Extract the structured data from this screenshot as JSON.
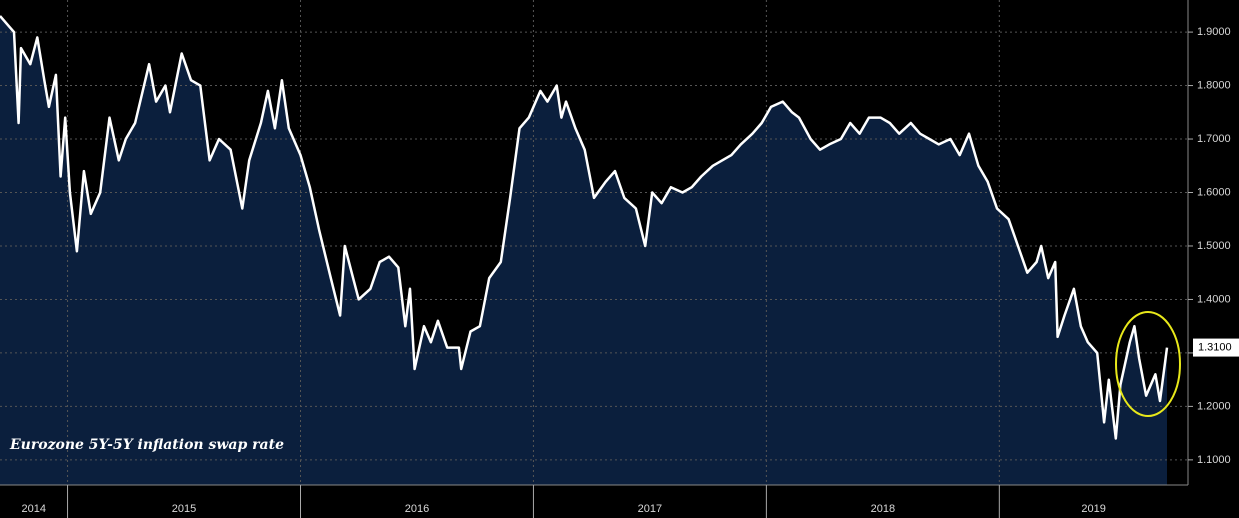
{
  "chart_data": {
    "type": "area",
    "annotation": "Eurozone 5Y-5Y inflation swap rate",
    "x": [
      2014.71,
      2014.75,
      2014.77,
      2014.79,
      2014.8,
      2014.84,
      2014.87,
      2014.9,
      2014.92,
      2014.95,
      2014.97,
      2014.99,
      2015.01,
      2015.04,
      2015.07,
      2015.1,
      2015.14,
      2015.18,
      2015.22,
      2015.25,
      2015.29,
      2015.35,
      2015.38,
      2015.42,
      2015.44,
      2015.49,
      2015.53,
      2015.57,
      2015.61,
      2015.65,
      2015.7,
      2015.75,
      2015.78,
      2015.83,
      2015.86,
      2015.89,
      2015.92,
      2015.95,
      2016.0,
      2016.04,
      2016.08,
      2016.13,
      2016.17,
      2016.19,
      2016.22,
      2016.25,
      2016.3,
      2016.34,
      2016.38,
      2016.42,
      2016.45,
      2016.47,
      2016.49,
      2016.53,
      2016.56,
      2016.59,
      2016.63,
      2016.68,
      2016.69,
      2016.73,
      2016.77,
      2016.81,
      2016.86,
      2016.9,
      2016.94,
      2016.98,
      2017.03,
      2017.06,
      2017.1,
      2017.12,
      2017.14,
      2017.18,
      2017.22,
      2017.26,
      2017.31,
      2017.35,
      2017.39,
      2017.44,
      2017.48,
      2017.51,
      2017.55,
      2017.59,
      2017.64,
      2017.68,
      2017.72,
      2017.77,
      2017.81,
      2017.85,
      2017.89,
      2017.94,
      2017.98,
      2018.02,
      2018.07,
      2018.11,
      2018.14,
      2018.19,
      2018.23,
      2018.27,
      2018.32,
      2018.36,
      2018.4,
      2018.44,
      2018.49,
      2018.53,
      2018.57,
      2018.62,
      2018.66,
      2018.7,
      2018.74,
      2018.79,
      2018.83,
      2018.87,
      2018.91,
      2018.95,
      2018.99,
      2019.04,
      2019.08,
      2019.12,
      2019.16,
      2019.18,
      2019.21,
      2019.24,
      2019.25,
      2019.28,
      2019.32,
      2019.35,
      2019.38,
      2019.42,
      2019.45,
      2019.47,
      2019.5,
      2019.52,
      2019.56,
      2019.58,
      2019.6,
      2019.63,
      2019.67,
      2019.69,
      2019.72
    ],
    "series": [
      {
        "color": "#ffffff",
        "fill": "#0b1f3d",
        "values": [
          1.93,
          1.91,
          1.9,
          1.73,
          1.87,
          1.84,
          1.89,
          1.81,
          1.76,
          1.82,
          1.63,
          1.74,
          1.6,
          1.49,
          1.64,
          1.56,
          1.6,
          1.74,
          1.66,
          1.7,
          1.73,
          1.84,
          1.77,
          1.8,
          1.75,
          1.86,
          1.81,
          1.8,
          1.66,
          1.7,
          1.68,
          1.57,
          1.66,
          1.73,
          1.79,
          1.72,
          1.81,
          1.72,
          1.67,
          1.61,
          1.53,
          1.44,
          1.37,
          1.5,
          1.45,
          1.4,
          1.42,
          1.47,
          1.48,
          1.46,
          1.35,
          1.42,
          1.27,
          1.35,
          1.32,
          1.36,
          1.31,
          1.31,
          1.27,
          1.34,
          1.35,
          1.44,
          1.47,
          1.59,
          1.72,
          1.74,
          1.79,
          1.77,
          1.8,
          1.74,
          1.77,
          1.72,
          1.68,
          1.59,
          1.62,
          1.64,
          1.59,
          1.57,
          1.5,
          1.6,
          1.58,
          1.61,
          1.6,
          1.61,
          1.63,
          1.65,
          1.66,
          1.67,
          1.69,
          1.71,
          1.73,
          1.76,
          1.77,
          1.75,
          1.74,
          1.7,
          1.68,
          1.69,
          1.7,
          1.73,
          1.71,
          1.74,
          1.74,
          1.73,
          1.71,
          1.73,
          1.71,
          1.7,
          1.69,
          1.7,
          1.67,
          1.71,
          1.65,
          1.62,
          1.57,
          1.55,
          1.5,
          1.45,
          1.47,
          1.5,
          1.44,
          1.47,
          1.33,
          1.37,
          1.42,
          1.35,
          1.32,
          1.3,
          1.17,
          1.25,
          1.14,
          1.24,
          1.32,
          1.35,
          1.29,
          1.22,
          1.26,
          1.21,
          1.31
        ]
      }
    ],
    "last_label": {
      "value": 1.31,
      "label": "1.3100"
    },
    "xlim": [
      2014.71,
      2019.81
    ],
    "xticks": [
      2015,
      2016,
      2017,
      2018,
      2019
    ],
    "x_band_labels": [
      "2014",
      "2015",
      "2016",
      "2017",
      "2018",
      "2019"
    ],
    "ylim": [
      1.053,
      1.96
    ],
    "yticks": [
      {
        "value": 1.1,
        "label": "1.1000"
      },
      {
        "value": 1.2,
        "label": "1.2000"
      },
      {
        "value": 1.3,
        "label": "1.3000"
      },
      {
        "value": 1.4,
        "label": "1.4000"
      },
      {
        "value": 1.5,
        "label": "1.5000"
      },
      {
        "value": 1.6,
        "label": "1.6000"
      },
      {
        "value": 1.7,
        "label": "1.7000"
      },
      {
        "value": 1.8,
        "label": "1.8000"
      },
      {
        "value": 1.9,
        "label": "1.9000"
      }
    ],
    "grid": true
  }
}
